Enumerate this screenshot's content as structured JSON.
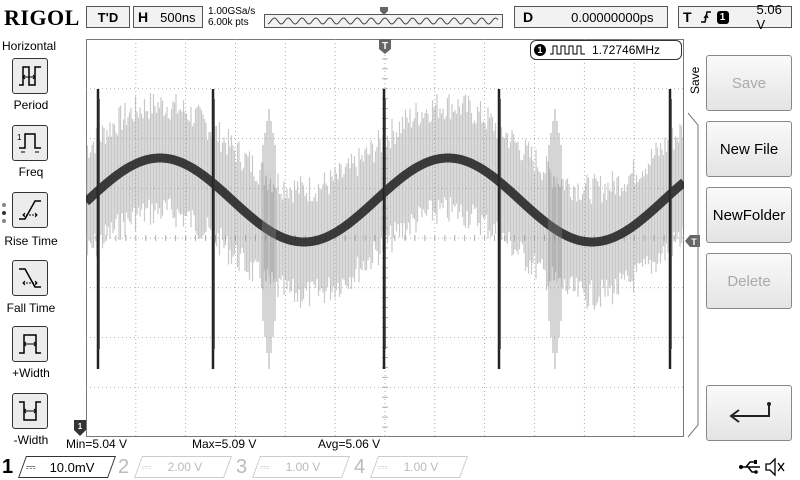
{
  "brand": "RIGOL",
  "top": {
    "trigger_status": "T'D",
    "timebase_tag": "H",
    "timebase": "500ns",
    "sample_rate": "1.00GSa/s",
    "memory_depth": "6.00k pts",
    "delay_tag": "D",
    "delay": "0.00000000ps",
    "trigger_tag": "T",
    "trigger_source": "1",
    "trigger_level": "5.06 V"
  },
  "left_menu": {
    "title": "Horizontal",
    "items": [
      {
        "label": "Period",
        "icon": "period-icon"
      },
      {
        "label": "Freq",
        "icon": "frequency-icon"
      },
      {
        "label": "Rise Time",
        "icon": "rise-time-icon"
      },
      {
        "label": "Fall Time",
        "icon": "fall-time-icon"
      },
      {
        "label": "+Width",
        "icon": "positive-width-icon"
      },
      {
        "label": "-Width",
        "icon": "negative-width-icon"
      }
    ]
  },
  "frequency_counter": {
    "channel": "1",
    "value": "1.72746MHz"
  },
  "right_menu": {
    "title": "Save",
    "buttons": [
      {
        "label": "Save",
        "enabled": false
      },
      {
        "label": "New File",
        "enabled": true
      },
      {
        "label": "NewFolder",
        "enabled": true
      },
      {
        "label": "Delete",
        "enabled": false
      }
    ],
    "return_icon": "return-arrow-icon"
  },
  "measurements": {
    "min": "Min=5.04 V",
    "max": "Max=5.09 V",
    "avg": "Avg=5.06 V"
  },
  "channels": [
    {
      "num": "1",
      "scale": "10.0mV",
      "active": true
    },
    {
      "num": "2",
      "scale": "2.00 V",
      "active": false
    },
    {
      "num": "3",
      "scale": "1.00 V",
      "active": false
    },
    {
      "num": "4",
      "scale": "1.00 V",
      "active": false
    }
  ],
  "markers": {
    "trigger_pos": "T",
    "channel_marker": "1"
  },
  "colors": {
    "background": "#ffffff",
    "trace": "#1a1a1a",
    "trace_envelope": "#9a9a9a",
    "grid": "#9a9a9a"
  }
}
